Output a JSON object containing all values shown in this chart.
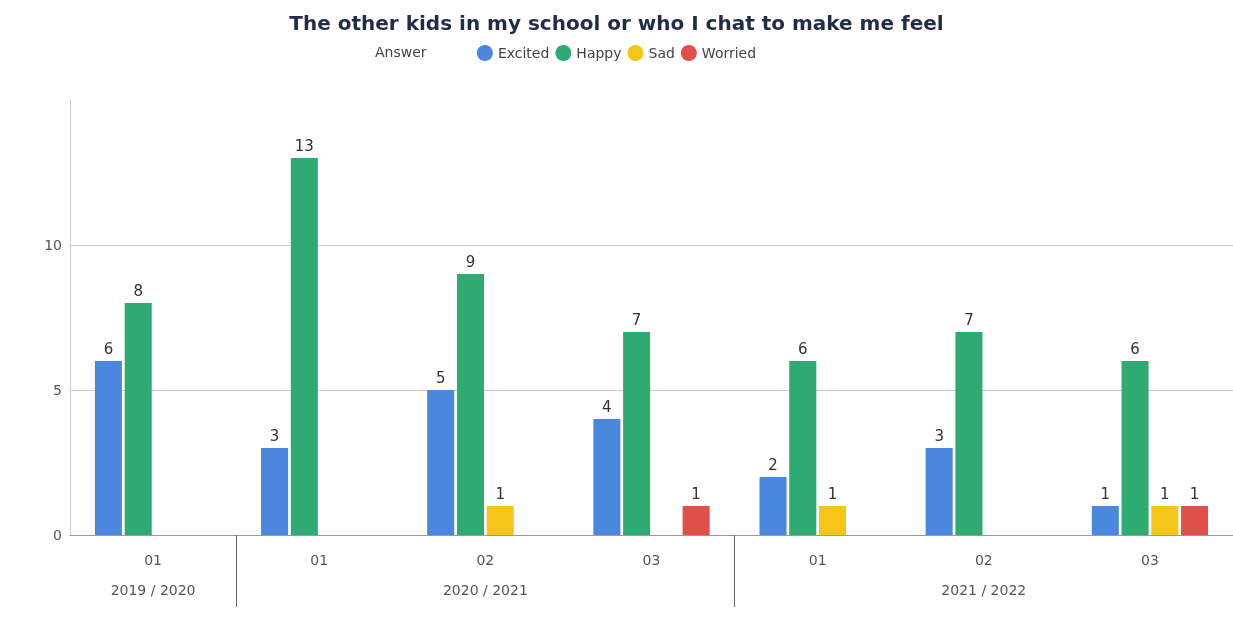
{
  "chart_data": {
    "type": "bar",
    "title": "The other kids in my school or who I chat to make me feel",
    "legend_title": "Answer",
    "legend": "top",
    "categories": [
      "01",
      "01",
      "02",
      "03",
      "01",
      "02",
      "03"
    ],
    "series": [
      {
        "name": "Excited",
        "color": "#4a88de",
        "values": [
          6,
          3,
          5,
          4,
          2,
          3,
          1
        ]
      },
      {
        "name": "Happy",
        "color": "#2eaa72",
        "values": [
          8,
          13,
          9,
          7,
          6,
          7,
          6
        ]
      },
      {
        "name": "Sad",
        "color": "#f5c518",
        "values": [
          null,
          null,
          1,
          null,
          1,
          null,
          1
        ]
      },
      {
        "name": "Worried",
        "color": "#e0504a",
        "values": [
          null,
          null,
          null,
          1,
          null,
          null,
          1
        ]
      }
    ],
    "annotations": [
      "2019 / 2020",
      "2020 / 2021",
      "2021 / 2022"
    ],
    "ylim": [
      0,
      15
    ],
    "yticks": [
      0,
      5,
      10
    ],
    "grid": "y",
    "data_labels": true
  }
}
